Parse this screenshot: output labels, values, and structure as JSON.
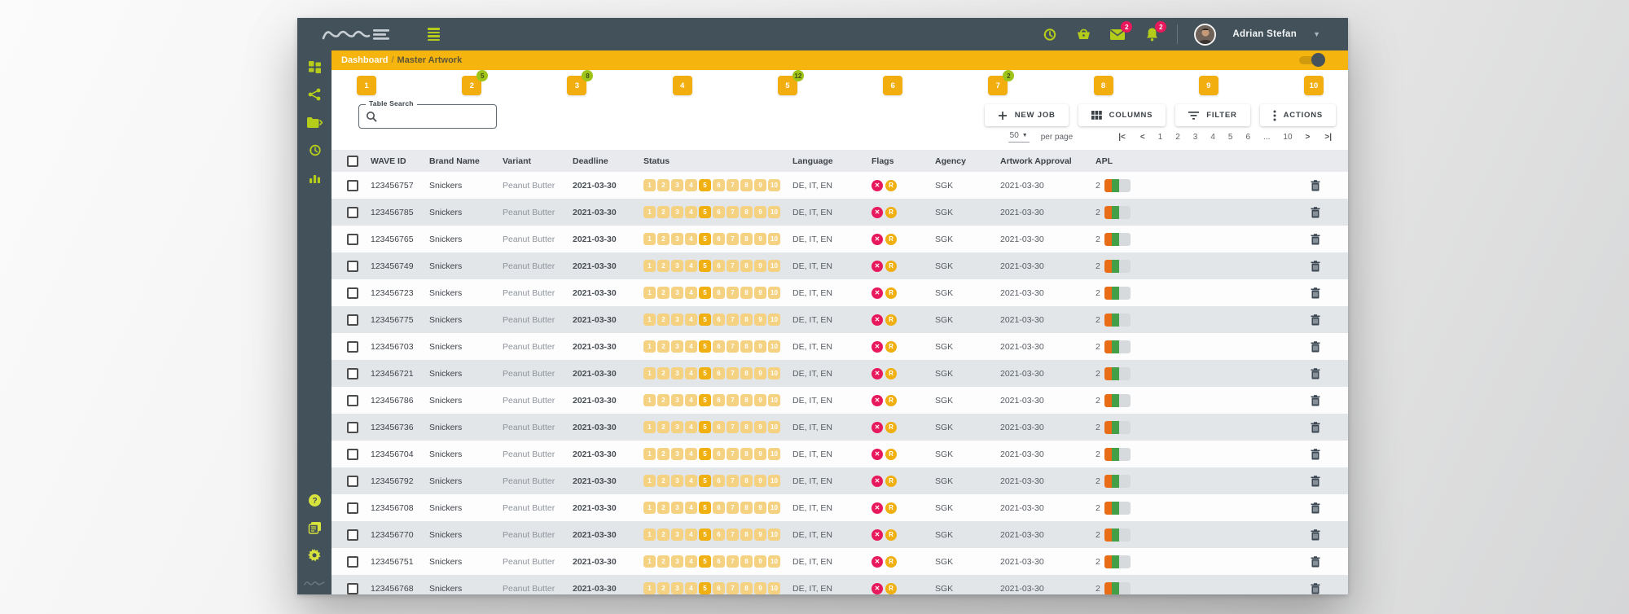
{
  "topbar": {
    "logo": "WAVE",
    "icons": [
      {
        "name": "history-icon",
        "badge": ""
      },
      {
        "name": "basket-icon",
        "badge": ""
      },
      {
        "name": "mail-icon",
        "badge": "2"
      },
      {
        "name": "bell-icon",
        "badge": "2"
      }
    ],
    "user": {
      "name": "Adrian Stefan"
    }
  },
  "breadcrumb": {
    "section": "Dashboard",
    "separator": "/",
    "page": "Master Artwork"
  },
  "steps": {
    "items": [
      {
        "label": "1",
        "badge": ""
      },
      {
        "label": "2",
        "badge": "5"
      },
      {
        "label": "3",
        "badge": "8"
      },
      {
        "label": "4",
        "badge": ""
      },
      {
        "label": "5",
        "badge": "12"
      },
      {
        "label": "6",
        "badge": ""
      },
      {
        "label": "7",
        "badge": "2"
      },
      {
        "label": "8",
        "badge": ""
      },
      {
        "label": "9",
        "badge": ""
      },
      {
        "label": "10",
        "badge": ""
      }
    ]
  },
  "toolbar": {
    "search_label": "Table Search",
    "search_value": "",
    "buttons": [
      {
        "id": "new-job",
        "label": "NEW JOB"
      },
      {
        "id": "columns",
        "label": "COLUMNS"
      },
      {
        "id": "filter",
        "label": "FILTER"
      },
      {
        "id": "actions",
        "label": "ACTIONS"
      }
    ]
  },
  "pagination": {
    "page_size": "50",
    "per_page_label": "per page",
    "first": "|<",
    "prev": "<",
    "next": ">",
    "last": ">|",
    "pages": [
      "1",
      "2",
      "3",
      "4",
      "5",
      "6",
      "...",
      "10"
    ]
  },
  "table": {
    "headers": [
      "",
      "WAVE ID",
      "Brand Name",
      "Variant",
      "Deadline",
      "Status",
      "Language",
      "Flags",
      "Agency",
      "Artwork Approval",
      "APL",
      ""
    ],
    "status_chip_labels": [
      "1",
      "2",
      "3",
      "4",
      "5",
      "6",
      "7",
      "8",
      "9",
      "10"
    ],
    "flag_glyphs": {
      "error": "✕",
      "warning": "R"
    },
    "rows": [
      {
        "wave_id": "123456757",
        "brand": "Snickers",
        "variant": "Peanut Butter",
        "deadline": "2021-03-30",
        "status_active": "5",
        "language": "DE, IT, EN",
        "agency": "SGK",
        "artwork_approval": "2021-03-30",
        "apl_count": "2"
      },
      {
        "wave_id": "123456785",
        "brand": "Snickers",
        "variant": "Peanut Butter",
        "deadline": "2021-03-30",
        "status_active": "5",
        "language": "DE, IT, EN",
        "agency": "SGK",
        "artwork_approval": "2021-03-30",
        "apl_count": "2"
      },
      {
        "wave_id": "123456765",
        "brand": "Snickers",
        "variant": "Peanut Butter",
        "deadline": "2021-03-30",
        "status_active": "5",
        "language": "DE, IT, EN",
        "agency": "SGK",
        "artwork_approval": "2021-03-30",
        "apl_count": "2"
      },
      {
        "wave_id": "123456749",
        "brand": "Snickers",
        "variant": "Peanut Butter",
        "deadline": "2021-03-30",
        "status_active": "5",
        "language": "DE, IT, EN",
        "agency": "SGK",
        "artwork_approval": "2021-03-30",
        "apl_count": "2"
      },
      {
        "wave_id": "123456723",
        "brand": "Snickers",
        "variant": "Peanut Butter",
        "deadline": "2021-03-30",
        "status_active": "5",
        "language": "DE, IT, EN",
        "agency": "SGK",
        "artwork_approval": "2021-03-30",
        "apl_count": "2"
      },
      {
        "wave_id": "123456775",
        "brand": "Snickers",
        "variant": "Peanut Butter",
        "deadline": "2021-03-30",
        "status_active": "5",
        "language": "DE, IT, EN",
        "agency": "SGK",
        "artwork_approval": "2021-03-30",
        "apl_count": "2"
      },
      {
        "wave_id": "123456703",
        "brand": "Snickers",
        "variant": "Peanut Butter",
        "deadline": "2021-03-30",
        "status_active": "5",
        "language": "DE, IT, EN",
        "agency": "SGK",
        "artwork_approval": "2021-03-30",
        "apl_count": "2"
      },
      {
        "wave_id": "123456721",
        "brand": "Snickers",
        "variant": "Peanut Butter",
        "deadline": "2021-03-30",
        "status_active": "5",
        "language": "DE, IT, EN",
        "agency": "SGK",
        "artwork_approval": "2021-03-30",
        "apl_count": "2"
      },
      {
        "wave_id": "123456786",
        "brand": "Snickers",
        "variant": "Peanut Butter",
        "deadline": "2021-03-30",
        "status_active": "5",
        "language": "DE, IT, EN",
        "agency": "SGK",
        "artwork_approval": "2021-03-30",
        "apl_count": "2"
      },
      {
        "wave_id": "123456736",
        "brand": "Snickers",
        "variant": "Peanut Butter",
        "deadline": "2021-03-30",
        "status_active": "5",
        "language": "DE, IT, EN",
        "agency": "SGK",
        "artwork_approval": "2021-03-30",
        "apl_count": "2"
      },
      {
        "wave_id": "123456704",
        "brand": "Snickers",
        "variant": "Peanut Butter",
        "deadline": "2021-03-30",
        "status_active": "5",
        "language": "DE, IT, EN",
        "agency": "SGK",
        "artwork_approval": "2021-03-30",
        "apl_count": "2"
      },
      {
        "wave_id": "123456792",
        "brand": "Snickers",
        "variant": "Peanut Butter",
        "deadline": "2021-03-30",
        "status_active": "5",
        "language": "DE, IT, EN",
        "agency": "SGK",
        "artwork_approval": "2021-03-30",
        "apl_count": "2"
      },
      {
        "wave_id": "123456708",
        "brand": "Snickers",
        "variant": "Peanut Butter",
        "deadline": "2021-03-30",
        "status_active": "5",
        "language": "DE, IT, EN",
        "agency": "SGK",
        "artwork_approval": "2021-03-30",
        "apl_count": "2"
      },
      {
        "wave_id": "123456770",
        "brand": "Snickers",
        "variant": "Peanut Butter",
        "deadline": "2021-03-30",
        "status_active": "5",
        "language": "DE, IT, EN",
        "agency": "SGK",
        "artwork_approval": "2021-03-30",
        "apl_count": "2"
      },
      {
        "wave_id": "123456751",
        "brand": "Snickers",
        "variant": "Peanut Butter",
        "deadline": "2021-03-30",
        "status_active": "5",
        "language": "DE, IT, EN",
        "agency": "SGK",
        "artwork_approval": "2021-03-30",
        "apl_count": "2"
      },
      {
        "wave_id": "123456768",
        "brand": "Snickers",
        "variant": "Peanut Butter",
        "deadline": "2021-03-30",
        "status_active": "5",
        "language": "DE, IT, EN",
        "agency": "SGK",
        "artwork_approval": "2021-03-30",
        "apl_count": "2"
      }
    ]
  },
  "sidebar": {
    "top_icons": [
      "dashboard-icon",
      "share-icon",
      "folder-icon",
      "history-icon",
      "bar-chart-icon"
    ],
    "bottom_icons": [
      "help-icon",
      "news-icon",
      "settings-icon"
    ]
  },
  "colors": {
    "accent_yellow": "#F6B40E",
    "topbar_slate": "#42515A",
    "icon_green": "#B5CC1A",
    "badge_pink": "#E8185C",
    "flag_amber": "#F0B011",
    "apl_orange": "#E96D17",
    "apl_green": "#43A047",
    "chip_light": "#F5D281",
    "chip_active": "#F1B011"
  }
}
